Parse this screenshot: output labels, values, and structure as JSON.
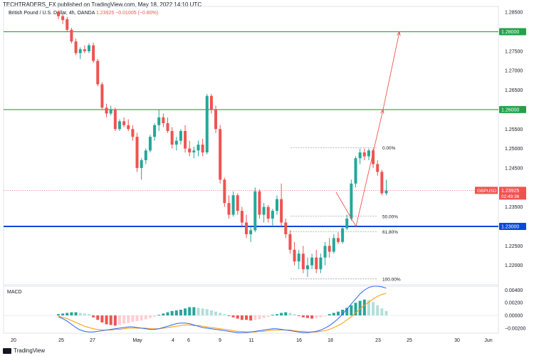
{
  "header": {
    "publisher": "TECHTRADERS_FX published on TradingView.com, May 18, 2022 14:10 UTC",
    "symbol": "British Pound / U.S. Dollar, 4h, OANDA",
    "price": "1.23925",
    "change": "−0.01005 (−0.80%)"
  },
  "footer": {
    "brand": "TradingView"
  },
  "colors": {
    "up": "#26a69a",
    "down": "#ef5350",
    "support": "#0d47d9",
    "resistance": "#22a34a",
    "macd_line": "#2962ff",
    "signal_line": "#ff9800"
  },
  "chart_data": [
    {
      "type": "candlestick",
      "symbol": "GBPUSD",
      "timeframe": "4h",
      "ylim": [
        1.215,
        1.2865
      ],
      "y_ticks": [
        "1.28500",
        "1.27500",
        "1.27000",
        "1.26500",
        "1.25500",
        "1.25000",
        "1.24500",
        "1.23500",
        "1.22500",
        "1.22000"
      ],
      "x_ticks": [
        "20",
        "25",
        "27",
        "May",
        "4",
        "6",
        "9",
        "11",
        "16",
        "18",
        "23",
        "25",
        "30",
        "Jun"
      ],
      "horizontal_lines": [
        {
          "price": 1.28,
          "label": "1.28000",
          "role": "resistance"
        },
        {
          "price": 1.26,
          "label": "1.26000",
          "role": "resistance"
        },
        {
          "price": 1.23,
          "label": "1.23000",
          "role": "support"
        }
      ],
      "last_price": {
        "symbol": "GBPUSD",
        "value": "1.23925",
        "countdown": "02:49:36"
      },
      "fibonacci": [
        {
          "label": "0.00%",
          "price": 1.2502
        },
        {
          "label": "50.00%",
          "price": 1.2326
        },
        {
          "label": "61.80%",
          "price": 1.2286
        },
        {
          "label": "100.00%",
          "price": 1.2165
        }
      ],
      "projection": [
        {
          "x": "18",
          "price": 1.2388
        },
        {
          "x": "20",
          "price": 1.23
        },
        {
          "x": "23",
          "price": 1.26
        },
        {
          "x": "25",
          "price": 1.28
        }
      ],
      "candles": [
        [
          1.285,
          1.2855,
          1.2832,
          1.284
        ],
        [
          1.284,
          1.2845,
          1.282,
          1.283
        ],
        [
          1.2832,
          1.2838,
          1.28,
          1.2805
        ],
        [
          1.2805,
          1.281,
          1.277,
          1.2775
        ],
        [
          1.2775,
          1.2782,
          1.274,
          1.2745
        ],
        [
          1.2745,
          1.276,
          1.273,
          1.2755
        ],
        [
          1.2755,
          1.2765,
          1.2745,
          1.275
        ],
        [
          1.275,
          1.277,
          1.2745,
          1.2765
        ],
        [
          1.2765,
          1.2772,
          1.272,
          1.2725
        ],
        [
          1.2725,
          1.273,
          1.266,
          1.2665
        ],
        [
          1.2665,
          1.267,
          1.26,
          1.2605
        ],
        [
          1.2605,
          1.2615,
          1.258,
          1.259
        ],
        [
          1.259,
          1.261,
          1.2585,
          1.26
        ],
        [
          1.26,
          1.2605,
          1.2545,
          1.255
        ],
        [
          1.255,
          1.2575,
          1.2545,
          1.257
        ],
        [
          1.257,
          1.258,
          1.2555,
          1.256
        ],
        [
          1.256,
          1.2575,
          1.2545,
          1.255
        ],
        [
          1.255,
          1.256,
          1.252,
          1.253
        ],
        [
          1.253,
          1.254,
          1.244,
          1.245
        ],
        [
          1.245,
          1.2475,
          1.242,
          1.247
        ],
        [
          1.247,
          1.25,
          1.246,
          1.2495
        ],
        [
          1.2495,
          1.2535,
          1.249,
          1.253
        ],
        [
          1.253,
          1.2565,
          1.252,
          1.256
        ],
        [
          1.256,
          1.26,
          1.2545,
          1.258
        ],
        [
          1.258,
          1.259,
          1.2555,
          1.2565
        ],
        [
          1.2565,
          1.258,
          1.254,
          1.2545
        ],
        [
          1.2545,
          1.2555,
          1.25,
          1.251
        ],
        [
          1.251,
          1.253,
          1.2495,
          1.252
        ],
        [
          1.252,
          1.255,
          1.251,
          1.2545
        ],
        [
          1.2545,
          1.256,
          1.249,
          1.25
        ],
        [
          1.25,
          1.252,
          1.248,
          1.249
        ],
        [
          1.249,
          1.2505,
          1.2475,
          1.2495
        ],
        [
          1.2495,
          1.252,
          1.248,
          1.251
        ],
        [
          1.251,
          1.2525,
          1.248,
          1.249
        ],
        [
          1.249,
          1.264,
          1.2485,
          1.2635
        ],
        [
          1.2635,
          1.264,
          1.259,
          1.26
        ],
        [
          1.26,
          1.261,
          1.254,
          1.255
        ],
        [
          1.255,
          1.256,
          1.241,
          1.242
        ],
        [
          1.242,
          1.2425,
          1.235,
          1.236
        ],
        [
          1.236,
          1.238,
          1.232,
          1.233
        ],
        [
          1.233,
          1.239,
          1.2325,
          1.238
        ],
        [
          1.238,
          1.2385,
          1.233,
          1.234
        ],
        [
          1.234,
          1.235,
          1.23,
          1.231
        ],
        [
          1.231,
          1.233,
          1.227,
          1.228
        ],
        [
          1.228,
          1.23,
          1.226,
          1.229
        ],
        [
          1.229,
          1.24,
          1.2285,
          1.239
        ],
        [
          1.239,
          1.2395,
          1.232,
          1.233
        ],
        [
          1.233,
          1.236,
          1.231,
          1.235
        ],
        [
          1.235,
          1.2355,
          1.231,
          1.232
        ],
        [
          1.232,
          1.2345,
          1.23,
          1.234
        ],
        [
          1.234,
          1.238,
          1.233,
          1.237
        ],
        [
          1.237,
          1.241,
          1.23,
          1.231
        ],
        [
          1.231,
          1.232,
          1.227,
          1.228
        ],
        [
          1.228,
          1.229,
          1.223,
          1.224
        ],
        [
          1.224,
          1.226,
          1.22,
          1.221
        ],
        [
          1.221,
          1.224,
          1.219,
          1.223
        ],
        [
          1.223,
          1.225,
          1.218,
          1.219
        ],
        [
          1.219,
          1.222,
          1.217,
          1.22
        ],
        [
          1.22,
          1.223,
          1.219,
          1.222
        ],
        [
          1.222,
          1.224,
          1.218,
          1.219
        ],
        [
          1.219,
          1.223,
          1.218,
          1.222
        ],
        [
          1.222,
          1.226,
          1.22,
          1.225
        ],
        [
          1.225,
          1.227,
          1.222,
          1.2235
        ],
        [
          1.2235,
          1.228,
          1.223,
          1.227
        ],
        [
          1.227,
          1.2285,
          1.2255,
          1.226
        ],
        [
          1.226,
          1.23,
          1.2255,
          1.2295
        ],
        [
          1.2295,
          1.233,
          1.229,
          1.232
        ],
        [
          1.232,
          1.242,
          1.2315,
          1.241
        ],
        [
          1.241,
          1.248,
          1.24,
          1.2475
        ],
        [
          1.2475,
          1.25,
          1.246,
          1.249
        ],
        [
          1.249,
          1.25,
          1.247,
          1.248
        ],
        [
          1.248,
          1.25,
          1.247,
          1.2495
        ],
        [
          1.2495,
          1.25,
          1.245,
          1.246
        ],
        [
          1.246,
          1.247,
          1.243,
          1.244
        ],
        [
          1.244,
          1.2445,
          1.238,
          1.2385
        ],
        [
          1.2385,
          1.242,
          1.238,
          1.2392
        ]
      ]
    },
    {
      "type": "bar",
      "title": "MACD",
      "ylim": [
        -0.0028,
        0.0046
      ],
      "y_ticks": [
        "0.00400",
        "0.00200",
        "0.00000",
        "−0.00200"
      ],
      "histogram": [
        0.0002,
        0.0003,
        0.0004,
        0.0005,
        0.0005,
        0.0004,
        0.0003,
        0.0002,
        -0.0003,
        -0.0007,
        -0.0011,
        -0.0014,
        -0.0015,
        -0.0016,
        -0.0015,
        -0.0013,
        -0.0012,
        -0.001,
        -0.0009,
        -0.0008,
        -0.0006,
        -0.0004,
        -0.0002,
        0.0001,
        0.0003,
        0.0005,
        0.0007,
        0.0008,
        0.0009,
        0.0011,
        0.0013,
        0.0013,
        0.0012,
        0.0011,
        0.001,
        0.0008,
        0.0006,
        0.0004,
        0.0002,
        -0.0001,
        -0.0003,
        -0.0005,
        -0.0007,
        -0.0007,
        -0.0008,
        -0.0007,
        -0.0006,
        -0.0004,
        -0.0002,
        0.0001,
        0.0002,
        0.0004,
        0.0005,
        0.0004,
        0.0002,
        -0.0001,
        -0.0003,
        -0.0004,
        -0.0005,
        -0.0004,
        -0.0003,
        -0.0001,
        0.0002,
        0.0004,
        0.0006,
        0.0009,
        0.0012,
        0.0016,
        0.002,
        0.0023,
        0.0025,
        0.0024,
        0.0021,
        0.0016,
        0.0011,
        0.0007
      ],
      "macd": [
        -0.0002,
        -0.0005,
        -0.0009,
        -0.0014,
        -0.0019,
        -0.0023,
        -0.0025,
        -0.0026,
        -0.0026,
        -0.0025,
        -0.0024,
        -0.0023,
        -0.0022,
        -0.0021,
        -0.002,
        -0.0019,
        -0.0018,
        -0.0018,
        -0.0019,
        -0.002,
        -0.0021,
        -0.0022,
        -0.0022,
        -0.0021,
        -0.0019,
        -0.0017,
        -0.0015,
        -0.0013,
        -0.0012,
        -0.0012,
        -0.0013,
        -0.0015,
        -0.0017,
        -0.0019,
        -0.002,
        -0.0021,
        -0.0022,
        -0.0023,
        -0.0024,
        -0.0025,
        -0.0026,
        -0.0027,
        -0.0027,
        -0.0027,
        -0.0026,
        -0.0025,
        -0.0024,
        -0.0023,
        -0.0022,
        -0.0021,
        -0.0021,
        -0.0022,
        -0.0023,
        -0.0024,
        -0.0025,
        -0.0026,
        -0.0027,
        -0.0027,
        -0.0026,
        -0.0025,
        -0.0023,
        -0.002,
        -0.0016,
        -0.0011,
        -0.0005,
        0.0002,
        0.001,
        0.0018,
        0.0026,
        0.0034,
        0.004,
        0.0044,
        0.0046,
        0.0046,
        0.0045,
        0.0043
      ],
      "signal": [
        -0.0001,
        -0.0003,
        -0.0005,
        -0.0008,
        -0.0011,
        -0.0014,
        -0.0017,
        -0.0019,
        -0.0021,
        -0.0022,
        -0.0023,
        -0.0023,
        -0.0023,
        -0.0022,
        -0.0022,
        -0.0021,
        -0.002,
        -0.002,
        -0.002,
        -0.002,
        -0.002,
        -0.0021,
        -0.0021,
        -0.0021,
        -0.002,
        -0.0019,
        -0.0018,
        -0.0017,
        -0.0016,
        -0.0015,
        -0.0015,
        -0.0016,
        -0.0016,
        -0.0017,
        -0.0018,
        -0.0019,
        -0.002,
        -0.0021,
        -0.0022,
        -0.0023,
        -0.0024,
        -0.0025,
        -0.0025,
        -0.0026,
        -0.0026,
        -0.0026,
        -0.0025,
        -0.0025,
        -0.0024,
        -0.0023,
        -0.0023,
        -0.0023,
        -0.0023,
        -0.0023,
        -0.0024,
        -0.0025,
        -0.0025,
        -0.0026,
        -0.0026,
        -0.0026,
        -0.0025,
        -0.0024,
        -0.0022,
        -0.0019,
        -0.0016,
        -0.0012,
        -0.0007,
        -0.0002,
        0.0004,
        0.001,
        0.0016,
        0.0021,
        0.0026,
        0.003,
        0.0033,
        0.0035
      ]
    }
  ]
}
